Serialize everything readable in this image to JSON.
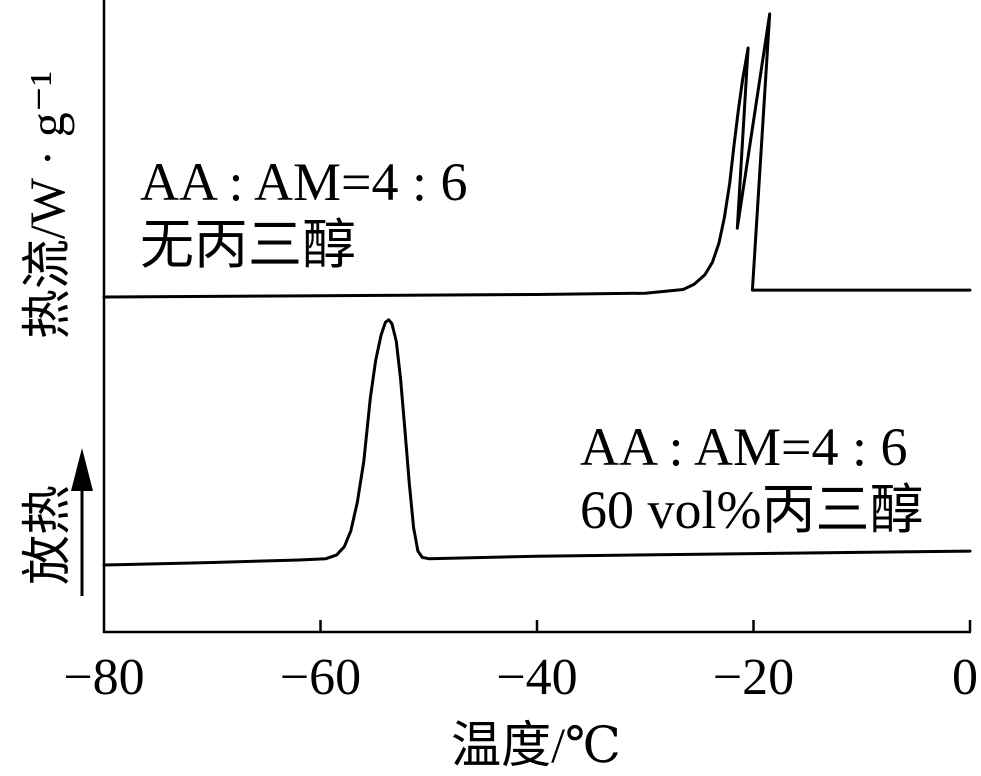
{
  "chart_data": {
    "type": "line",
    "xlabel": "温度/℃",
    "ylabel": "热流/W · g⁻¹",
    "xlim": [
      -80,
      0
    ],
    "ylim": [
      0,
      100
    ],
    "xticks": [
      -80,
      -60,
      -40,
      -20,
      0
    ],
    "xtick_labels": [
      "−80",
      "−60",
      "−40",
      "−20",
      "0"
    ],
    "yticks": [],
    "grid": false,
    "exotherm_label": "放热",
    "exotherm_arrow": "up",
    "colors": {
      "line": "#000000",
      "background": "#ffffff"
    },
    "series": [
      {
        "label": [
          "AA : AM=4 : 6",
          "无丙三醇"
        ],
        "x": [
          -80,
          -60,
          -40,
          -30,
          -26.5,
          -25.5,
          -24.5,
          -23.8,
          -23.2,
          -22.7,
          -22.2,
          -21.8,
          -21.4,
          -21.0,
          -20.5,
          -21.5,
          -18.5,
          -20.1,
          0
        ],
        "y": [
          53.0,
          53.2,
          53.4,
          53.6,
          54.2,
          55.0,
          56.5,
          58.5,
          61.5,
          65.5,
          71.0,
          77.0,
          82.5,
          87.5,
          92.4,
          63.9,
          97.8,
          54.1,
          54.1
        ]
      },
      {
        "label": [
          "AA : AM=4 : 6",
          "60 vol%丙三醇"
        ],
        "x": [
          -80,
          -70,
          -62,
          -59.5,
          -58.5,
          -57.8,
          -57.2,
          -56.6,
          -56.0,
          -55.4,
          -54.9,
          -54.4,
          -54.0,
          -53.7,
          -53.4,
          -53.0,
          -52.6,
          -52.2,
          -51.8,
          -51.4,
          -51.0,
          -50.6,
          -50.0,
          -40,
          -20,
          0
        ],
        "y": [
          10.6,
          11.0,
          11.4,
          11.6,
          12.2,
          13.5,
          16.0,
          20.5,
          27.0,
          37.0,
          43.0,
          47.0,
          49.0,
          49.4,
          48.8,
          46.0,
          40.0,
          32.0,
          23.5,
          16.5,
          12.8,
          11.8,
          11.6,
          12.0,
          12.4,
          12.8
        ]
      }
    ]
  }
}
